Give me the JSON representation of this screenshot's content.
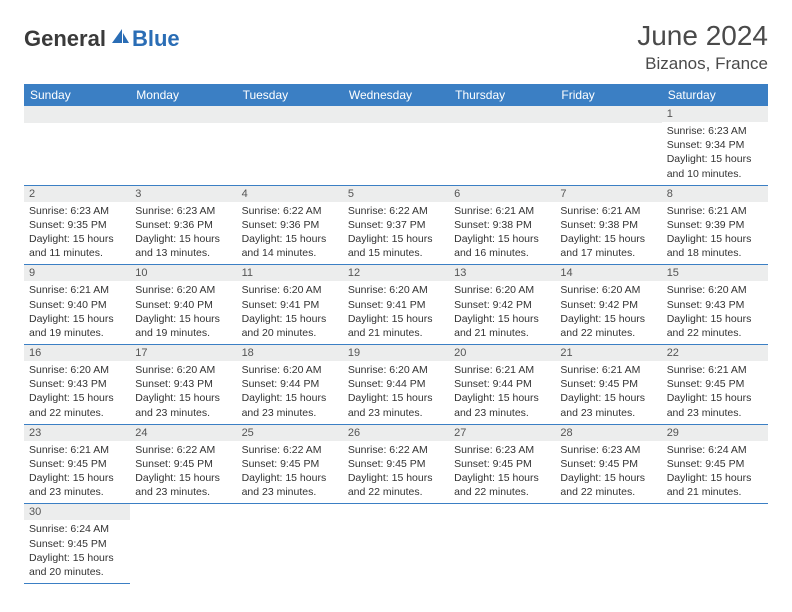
{
  "logo": {
    "text_dark": "General",
    "text_blue": "Blue",
    "brand_color": "#2a6db5"
  },
  "title": "June 2024",
  "location": "Bizanos, France",
  "header_bg": "#3b7fc4",
  "daynum_bg": "#eceded",
  "days_of_week": [
    "Sunday",
    "Monday",
    "Tuesday",
    "Wednesday",
    "Thursday",
    "Friday",
    "Saturday"
  ],
  "weeks": [
    [
      null,
      null,
      null,
      null,
      null,
      null,
      {
        "n": "1",
        "sr": "Sunrise: 6:23 AM",
        "ss": "Sunset: 9:34 PM",
        "d1": "Daylight: 15 hours",
        "d2": "and 10 minutes."
      }
    ],
    [
      {
        "n": "2",
        "sr": "Sunrise: 6:23 AM",
        "ss": "Sunset: 9:35 PM",
        "d1": "Daylight: 15 hours",
        "d2": "and 11 minutes."
      },
      {
        "n": "3",
        "sr": "Sunrise: 6:23 AM",
        "ss": "Sunset: 9:36 PM",
        "d1": "Daylight: 15 hours",
        "d2": "and 13 minutes."
      },
      {
        "n": "4",
        "sr": "Sunrise: 6:22 AM",
        "ss": "Sunset: 9:36 PM",
        "d1": "Daylight: 15 hours",
        "d2": "and 14 minutes."
      },
      {
        "n": "5",
        "sr": "Sunrise: 6:22 AM",
        "ss": "Sunset: 9:37 PM",
        "d1": "Daylight: 15 hours",
        "d2": "and 15 minutes."
      },
      {
        "n": "6",
        "sr": "Sunrise: 6:21 AM",
        "ss": "Sunset: 9:38 PM",
        "d1": "Daylight: 15 hours",
        "d2": "and 16 minutes."
      },
      {
        "n": "7",
        "sr": "Sunrise: 6:21 AM",
        "ss": "Sunset: 9:38 PM",
        "d1": "Daylight: 15 hours",
        "d2": "and 17 minutes."
      },
      {
        "n": "8",
        "sr": "Sunrise: 6:21 AM",
        "ss": "Sunset: 9:39 PM",
        "d1": "Daylight: 15 hours",
        "d2": "and 18 minutes."
      }
    ],
    [
      {
        "n": "9",
        "sr": "Sunrise: 6:21 AM",
        "ss": "Sunset: 9:40 PM",
        "d1": "Daylight: 15 hours",
        "d2": "and 19 minutes."
      },
      {
        "n": "10",
        "sr": "Sunrise: 6:20 AM",
        "ss": "Sunset: 9:40 PM",
        "d1": "Daylight: 15 hours",
        "d2": "and 19 minutes."
      },
      {
        "n": "11",
        "sr": "Sunrise: 6:20 AM",
        "ss": "Sunset: 9:41 PM",
        "d1": "Daylight: 15 hours",
        "d2": "and 20 minutes."
      },
      {
        "n": "12",
        "sr": "Sunrise: 6:20 AM",
        "ss": "Sunset: 9:41 PM",
        "d1": "Daylight: 15 hours",
        "d2": "and 21 minutes."
      },
      {
        "n": "13",
        "sr": "Sunrise: 6:20 AM",
        "ss": "Sunset: 9:42 PM",
        "d1": "Daylight: 15 hours",
        "d2": "and 21 minutes."
      },
      {
        "n": "14",
        "sr": "Sunrise: 6:20 AM",
        "ss": "Sunset: 9:42 PM",
        "d1": "Daylight: 15 hours",
        "d2": "and 22 minutes."
      },
      {
        "n": "15",
        "sr": "Sunrise: 6:20 AM",
        "ss": "Sunset: 9:43 PM",
        "d1": "Daylight: 15 hours",
        "d2": "and 22 minutes."
      }
    ],
    [
      {
        "n": "16",
        "sr": "Sunrise: 6:20 AM",
        "ss": "Sunset: 9:43 PM",
        "d1": "Daylight: 15 hours",
        "d2": "and 22 minutes."
      },
      {
        "n": "17",
        "sr": "Sunrise: 6:20 AM",
        "ss": "Sunset: 9:43 PM",
        "d1": "Daylight: 15 hours",
        "d2": "and 23 minutes."
      },
      {
        "n": "18",
        "sr": "Sunrise: 6:20 AM",
        "ss": "Sunset: 9:44 PM",
        "d1": "Daylight: 15 hours",
        "d2": "and 23 minutes."
      },
      {
        "n": "19",
        "sr": "Sunrise: 6:20 AM",
        "ss": "Sunset: 9:44 PM",
        "d1": "Daylight: 15 hours",
        "d2": "and 23 minutes."
      },
      {
        "n": "20",
        "sr": "Sunrise: 6:21 AM",
        "ss": "Sunset: 9:44 PM",
        "d1": "Daylight: 15 hours",
        "d2": "and 23 minutes."
      },
      {
        "n": "21",
        "sr": "Sunrise: 6:21 AM",
        "ss": "Sunset: 9:45 PM",
        "d1": "Daylight: 15 hours",
        "d2": "and 23 minutes."
      },
      {
        "n": "22",
        "sr": "Sunrise: 6:21 AM",
        "ss": "Sunset: 9:45 PM",
        "d1": "Daylight: 15 hours",
        "d2": "and 23 minutes."
      }
    ],
    [
      {
        "n": "23",
        "sr": "Sunrise: 6:21 AM",
        "ss": "Sunset: 9:45 PM",
        "d1": "Daylight: 15 hours",
        "d2": "and 23 minutes."
      },
      {
        "n": "24",
        "sr": "Sunrise: 6:22 AM",
        "ss": "Sunset: 9:45 PM",
        "d1": "Daylight: 15 hours",
        "d2": "and 23 minutes."
      },
      {
        "n": "25",
        "sr": "Sunrise: 6:22 AM",
        "ss": "Sunset: 9:45 PM",
        "d1": "Daylight: 15 hours",
        "d2": "and 23 minutes."
      },
      {
        "n": "26",
        "sr": "Sunrise: 6:22 AM",
        "ss": "Sunset: 9:45 PM",
        "d1": "Daylight: 15 hours",
        "d2": "and 22 minutes."
      },
      {
        "n": "27",
        "sr": "Sunrise: 6:23 AM",
        "ss": "Sunset: 9:45 PM",
        "d1": "Daylight: 15 hours",
        "d2": "and 22 minutes."
      },
      {
        "n": "28",
        "sr": "Sunrise: 6:23 AM",
        "ss": "Sunset: 9:45 PM",
        "d1": "Daylight: 15 hours",
        "d2": "and 22 minutes."
      },
      {
        "n": "29",
        "sr": "Sunrise: 6:24 AM",
        "ss": "Sunset: 9:45 PM",
        "d1": "Daylight: 15 hours",
        "d2": "and 21 minutes."
      }
    ],
    [
      {
        "n": "30",
        "sr": "Sunrise: 6:24 AM",
        "ss": "Sunset: 9:45 PM",
        "d1": "Daylight: 15 hours",
        "d2": "and 20 minutes."
      },
      null,
      null,
      null,
      null,
      null,
      null
    ]
  ]
}
